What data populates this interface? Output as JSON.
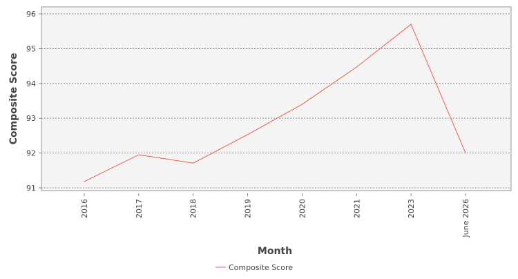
{
  "chart_data": {
    "type": "line",
    "x_label": "Month",
    "y_label": "Composite Score",
    "categories": [
      "2016",
      "2017",
      "2018",
      "2019",
      "2020",
      "2021",
      "2023",
      "June 2026"
    ],
    "series": [
      {
        "name": "Composite Score",
        "color": "#f0584a",
        "values": [
          91.18,
          91.95,
          91.71,
          92.53,
          93.4,
          94.47,
          95.7,
          92.0
        ]
      }
    ],
    "ylim": [
      90.92,
      96.2
    ],
    "yticks": [
      91,
      92,
      93,
      94,
      95,
      96
    ],
    "grid": true
  }
}
